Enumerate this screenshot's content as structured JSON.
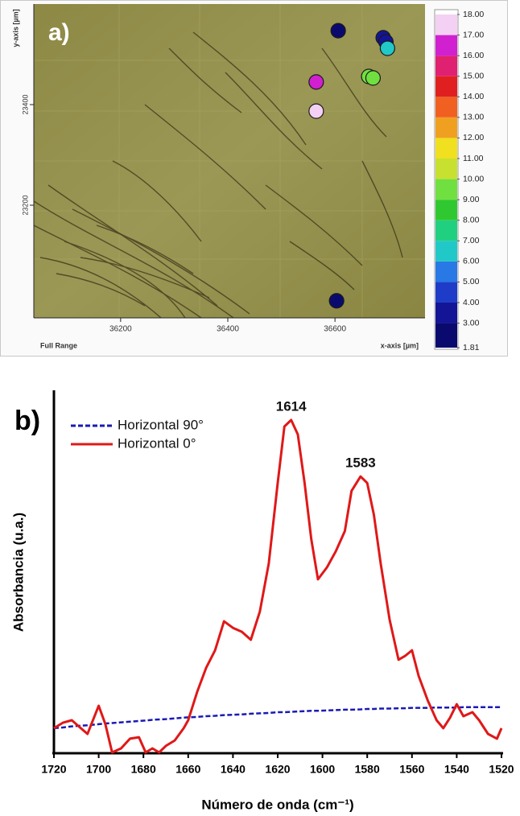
{
  "chart_data": [
    {
      "type": "scatter",
      "panel": "a)",
      "xlabel": "x-axis [µm]",
      "ylabel": "y-axis [µm]",
      "note": "Full Range",
      "x": [
        36606,
        36690,
        36695,
        36698,
        36565,
        36663,
        36671,
        36565,
        36603
      ],
      "y": [
        23547,
        23533,
        23525,
        23512,
        23445,
        23456,
        23453,
        23387,
        23010
      ],
      "values": [
        2.5,
        3.2,
        3.5,
        6.5,
        16.3,
        9.5,
        9.6,
        17.8,
        2.5
      ],
      "xlim": [
        36038,
        36768
      ],
      "ylim": [
        22976,
        23600
      ],
      "xticks": [
        36200,
        36400,
        36600
      ],
      "yticks": [
        23200,
        23400
      ],
      "colorbar_lim": [
        1.81,
        18
      ],
      "colorbar_ticks": [
        {
          "value": 1.81,
          "label": "1.81"
        },
        {
          "value": 3,
          "label": "3.00"
        },
        {
          "value": 4,
          "label": "4.00"
        },
        {
          "value": 5,
          "label": "5.00"
        },
        {
          "value": 6,
          "label": "6.00"
        },
        {
          "value": 7,
          "label": "7.00"
        },
        {
          "value": 8,
          "label": "8.00"
        },
        {
          "value": 9,
          "label": "9.00"
        },
        {
          "value": 10,
          "label": "10.00"
        },
        {
          "value": 11,
          "label": "11.00"
        },
        {
          "value": 12,
          "label": "12.00"
        },
        {
          "value": 13,
          "label": "13.00"
        },
        {
          "value": 14,
          "label": "14.00"
        },
        {
          "value": 15,
          "label": "15.00"
        },
        {
          "value": 16,
          "label": "16.00"
        },
        {
          "value": 17,
          "label": "17.00"
        },
        {
          "value": 18,
          "label": "18.00"
        }
      ],
      "colormap": [
        "#0a0a6e",
        "#141496",
        "#1e3cc8",
        "#2878e6",
        "#20c8c8",
        "#20d080",
        "#30c830",
        "#70e040",
        "#c8e030",
        "#f0e020",
        "#f0a020",
        "#f06020",
        "#e02020",
        "#e02070",
        "#d020d0",
        "#f4d0f4"
      ]
    },
    {
      "type": "line",
      "panel": "b)",
      "xlabel": "Número de onda (cm⁻¹)",
      "ylabel": "Absorbancia (u.a.)",
      "x": [
        1720,
        1716,
        1712,
        1708,
        1705,
        1700,
        1697,
        1694,
        1690,
        1686,
        1682,
        1679,
        1676,
        1673,
        1670,
        1666,
        1662,
        1660,
        1656,
        1652,
        1648,
        1644,
        1640,
        1636,
        1632,
        1628,
        1624,
        1620,
        1617,
        1614,
        1611,
        1608,
        1605,
        1602,
        1598,
        1594,
        1590,
        1587,
        1583,
        1580,
        1577,
        1574,
        1570,
        1566,
        1563,
        1560,
        1557,
        1553,
        1549,
        1546,
        1543,
        1540,
        1537,
        1533,
        1530,
        1526,
        1522,
        1520
      ],
      "series": [
        {
          "name": "Horizontal 90°",
          "color": "#1a1ab4",
          "dashed": true,
          "values": [
            0.067,
            0.069,
            0.072,
            0.074,
            0.075,
            0.078,
            0.08,
            0.081,
            0.083,
            0.085,
            0.087,
            0.088,
            0.09,
            0.091,
            0.092,
            0.094,
            0.096,
            0.097,
            0.098,
            0.1,
            0.101,
            0.103,
            0.104,
            0.105,
            0.107,
            0.108,
            0.109,
            0.111,
            0.111,
            0.112,
            0.113,
            0.114,
            0.115,
            0.115,
            0.116,
            0.117,
            0.118,
            0.118,
            0.119,
            0.12,
            0.12,
            0.121,
            0.121,
            0.122,
            0.122,
            0.123,
            0.123,
            0.123,
            0.124,
            0.124,
            0.124,
            0.124,
            0.125,
            0.125,
            0.125,
            0.125,
            0.125,
            0.125
          ]
        },
        {
          "name": "Horizontal 0°",
          "color": "#e01818",
          "dashed": false,
          "values": [
            0.067,
            0.082,
            0.089,
            0.067,
            0.051,
            0.129,
            0.078,
            0,
            0.011,
            0.038,
            0.042,
            0,
            0.011,
            0,
            0.018,
            0.033,
            0.067,
            0.089,
            0.167,
            0.233,
            0.282,
            0.362,
            0.344,
            0.333,
            0.311,
            0.389,
            0.522,
            0.744,
            0.9,
            0.918,
            0.878,
            0.744,
            0.589,
            0.478,
            0.511,
            0.556,
            0.611,
            0.722,
            0.762,
            0.744,
            0.656,
            0.522,
            0.367,
            0.256,
            0.267,
            0.282,
            0.211,
            0.144,
            0.089,
            0.067,
            0.096,
            0.133,
            0.1,
            0.111,
            0.089,
            0.051,
            0.038,
            0.067
          ]
        }
      ],
      "annotations": [
        {
          "text": "1614",
          "x": 1614,
          "y": 0.918
        },
        {
          "text": "1583",
          "x": 1583,
          "y": 0.762
        }
      ],
      "xlim": [
        1720,
        1520
      ],
      "ylim": [
        0,
        1
      ],
      "xticks": [
        1720,
        1700,
        1680,
        1660,
        1640,
        1620,
        1600,
        1580,
        1560,
        1540,
        1520
      ]
    }
  ]
}
